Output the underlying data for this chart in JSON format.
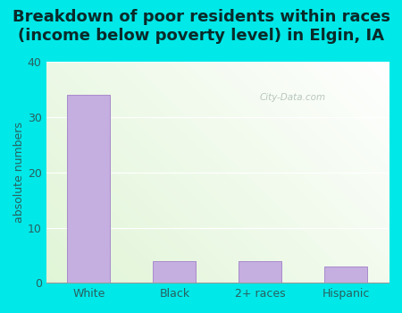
{
  "categories": [
    "White",
    "Black",
    "2+ races",
    "Hispanic"
  ],
  "values": [
    34,
    4,
    4,
    3
  ],
  "bar_color": "#c5aee0",
  "background_color": "#00e8e8",
  "title_line1": "Breakdown of poor residents within races",
  "title_line2": "(income below poverty level) in Elgin, IA",
  "ylabel": "absolute numbers",
  "ylim": [
    0,
    40
  ],
  "yticks": [
    0,
    10,
    20,
    30,
    40
  ],
  "title_fontsize": 13,
  "ylabel_fontsize": 9,
  "tick_fontsize": 9,
  "bar_edge_color": "#a080c8",
  "watermark": "City-Data.com",
  "grid_color": "#d0e8d0",
  "tick_color": "#2a6060",
  "label_color": "#2a6060"
}
